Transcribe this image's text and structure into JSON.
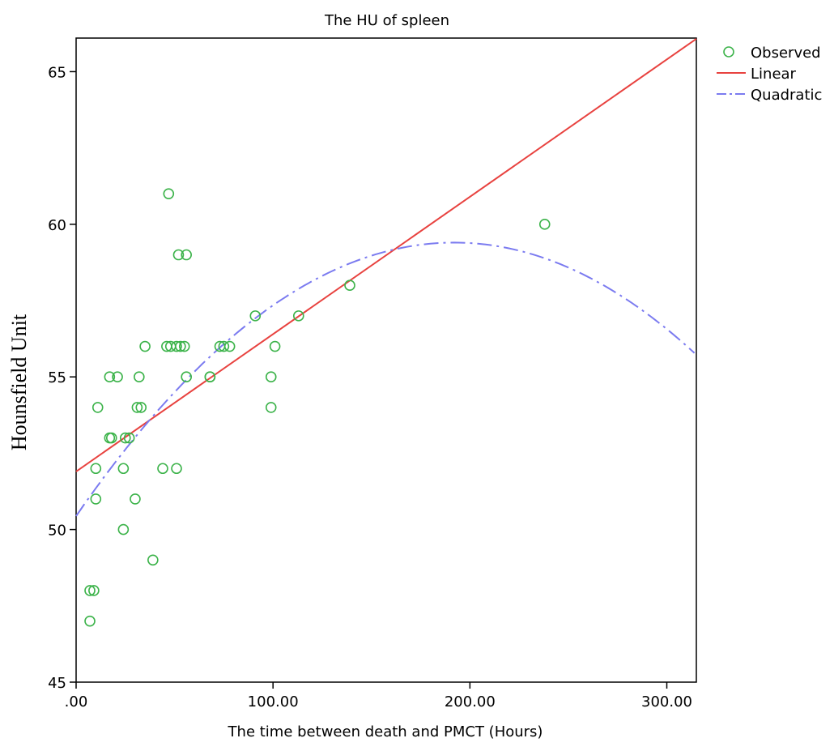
{
  "chart_data": {
    "type": "scatter",
    "title": "The HU of spleen",
    "xlabel": "The time between death and PMCT (Hours)",
    "ylabel": "Hounsfield Unit",
    "xlim": [
      0,
      315
    ],
    "ylim": [
      45,
      66.1
    ],
    "x_ticks": [
      0,
      100,
      200,
      300
    ],
    "x_tick_labels": [
      ".00",
      "100.00",
      "200.00",
      "300.00"
    ],
    "y_ticks": [
      45,
      50,
      55,
      60,
      65
    ],
    "y_tick_labels": [
      "45",
      "50",
      "55",
      "60",
      "65"
    ],
    "grid": false,
    "legend_position": "top-right",
    "legend": [
      {
        "label": "Observed",
        "style": "circle"
      },
      {
        "label": "Linear",
        "style": "solid"
      },
      {
        "label": "Quadratic",
        "style": "dashdot"
      }
    ],
    "colors": {
      "observed": "#3cb34a",
      "linear": "#e8423f",
      "quadratic": "#7b7bf0"
    },
    "observed": [
      [
        7,
        47
      ],
      [
        7,
        48
      ],
      [
        9,
        48
      ],
      [
        10,
        51
      ],
      [
        10,
        52
      ],
      [
        11,
        54
      ],
      [
        17,
        55
      ],
      [
        17,
        53
      ],
      [
        18,
        53
      ],
      [
        21,
        55
      ],
      [
        24,
        52
      ],
      [
        24,
        50
      ],
      [
        25,
        53
      ],
      [
        27,
        53
      ],
      [
        30,
        51
      ],
      [
        31,
        54
      ],
      [
        32,
        55
      ],
      [
        33,
        54
      ],
      [
        35,
        56
      ],
      [
        39,
        49
      ],
      [
        44,
        52
      ],
      [
        46,
        56
      ],
      [
        47,
        61
      ],
      [
        48,
        56
      ],
      [
        51,
        52
      ],
      [
        51,
        56
      ],
      [
        52,
        59
      ],
      [
        53,
        56
      ],
      [
        55,
        56
      ],
      [
        56,
        59
      ],
      [
        56,
        55
      ],
      [
        68,
        55
      ],
      [
        68,
        55
      ],
      [
        73,
        56
      ],
      [
        75,
        56
      ],
      [
        78,
        56
      ],
      [
        91,
        57
      ],
      [
        99,
        54
      ],
      [
        99,
        55
      ],
      [
        101,
        56
      ],
      [
        113,
        57
      ],
      [
        139,
        58
      ],
      [
        238,
        60
      ]
    ],
    "linear_fit": {
      "intercept": 51.9,
      "slope": 0.045
    },
    "quadratic_fit": {
      "x_range": [
        0,
        315
      ],
      "vertex_x": 192,
      "vertex_y": 59.4,
      "a": -0.000243
    }
  }
}
